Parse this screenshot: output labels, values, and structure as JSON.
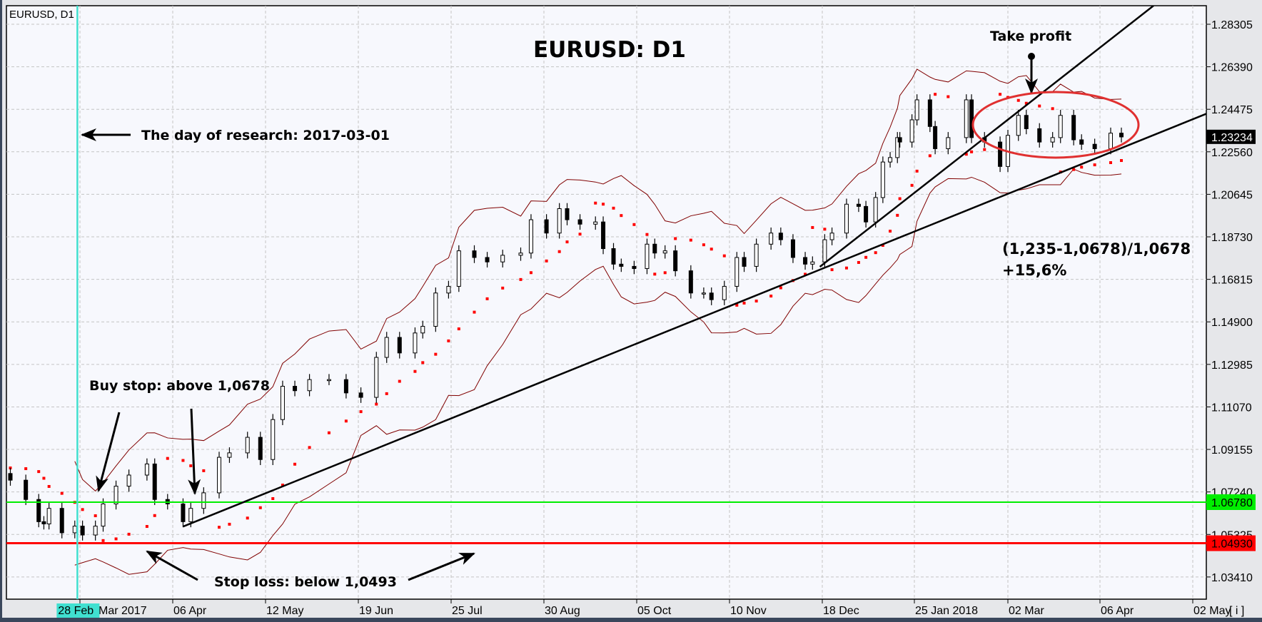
{
  "chart_data": {
    "type": "candlestick",
    "symbol_label": "EURUSD, D1",
    "title": "EURUSD: D1",
    "ylim": [
      1.0241,
      1.2914
    ],
    "grid": true,
    "yticks": [
      "1.28305",
      "1.26390",
      "1.24475",
      "1.22560",
      "1.20645",
      "1.18730",
      "1.16815",
      "1.14900",
      "1.12985",
      "1.11070",
      "1.09155",
      "1.07240",
      "1.05325",
      "1.03410"
    ],
    "xticks": [
      {
        "label": "Mar 2017",
        "date": "2017-03-01"
      },
      {
        "label": "06 Apr",
        "date": "2017-04-06"
      },
      {
        "label": "12 May",
        "date": "2017-05-12"
      },
      {
        "label": "19 Jun",
        "date": "2017-06-19"
      },
      {
        "label": "25 Jul",
        "date": "2017-07-25"
      },
      {
        "label": "30 Aug",
        "date": "2017-08-30"
      },
      {
        "label": "05 Oct",
        "date": "2017-10-05"
      },
      {
        "label": "10 Nov",
        "date": "2017-11-10"
      },
      {
        "label": "18 Dec",
        "date": "2017-12-18"
      },
      {
        "label": "25 Jan 2018",
        "date": "2018-01-25"
      },
      {
        "label": "02 Mar",
        "date": "2018-03-02"
      },
      {
        "label": "06 Apr",
        "date": "2018-04-06"
      },
      {
        "label": "02 May",
        "date": "2018-05-02"
      }
    ],
    "cursor": {
      "label": "28 Feb",
      "date": "2017-02-28",
      "color": "#40e0d0"
    },
    "info_button": "[ i ]",
    "current_price": {
      "label": "1.23234",
      "value": 1.23234
    },
    "levels": [
      {
        "label": "1.06780",
        "value": 1.0678,
        "color": "#00ee00"
      },
      {
        "label": "1.04930",
        "value": 1.0493,
        "color": "#ff0000"
      }
    ],
    "trendlines": [
      {
        "from": [
          "2017-04-10",
          1.0568
        ],
        "to": [
          "2018-05-07",
          1.2435
        ]
      },
      {
        "from": [
          "2017-12-17",
          1.1738
        ],
        "to": [
          "2018-04-21",
          1.2914
        ]
      }
    ],
    "closes": [
      [
        "2017-02-02",
        1.0777
      ],
      [
        "2017-02-08",
        1.069
      ],
      [
        "2017-02-13",
        1.059
      ],
      [
        "2017-02-15",
        1.058
      ],
      [
        "2017-02-17",
        1.065
      ],
      [
        "2017-02-22",
        1.054
      ],
      [
        "2017-02-27",
        1.057
      ],
      [
        "2017-03-02",
        1.053
      ],
      [
        "2017-03-07",
        1.057
      ],
      [
        "2017-03-10",
        1.067
      ],
      [
        "2017-03-15",
        1.075
      ],
      [
        "2017-03-20",
        1.08
      ],
      [
        "2017-03-27",
        1.085
      ],
      [
        "2017-03-30",
        1.069
      ],
      [
        "2017-04-04",
        1.067
      ],
      [
        "2017-04-10",
        1.059
      ],
      [
        "2017-04-13",
        1.065
      ],
      [
        "2017-04-18",
        1.072
      ],
      [
        "2017-04-24",
        1.088
      ],
      [
        "2017-04-28",
        1.09
      ],
      [
        "2017-05-05",
        1.097
      ],
      [
        "2017-05-10",
        1.087
      ],
      [
        "2017-05-15",
        1.105
      ],
      [
        "2017-05-19",
        1.12
      ],
      [
        "2017-05-24",
        1.118
      ],
      [
        "2017-05-30",
        1.123
      ],
      [
        "2017-06-07",
        1.123
      ],
      [
        "2017-06-14",
        1.117
      ],
      [
        "2017-06-20",
        1.115
      ],
      [
        "2017-06-26",
        1.133
      ],
      [
        "2017-06-30",
        1.142
      ],
      [
        "2017-07-05",
        1.135
      ],
      [
        "2017-07-11",
        1.144
      ],
      [
        "2017-07-14",
        1.147
      ],
      [
        "2017-07-19",
        1.162
      ],
      [
        "2017-07-24",
        1.165
      ],
      [
        "2017-07-28",
        1.181
      ],
      [
        "2017-08-03",
        1.178
      ],
      [
        "2017-08-08",
        1.176
      ],
      [
        "2017-08-14",
        1.179
      ],
      [
        "2017-08-21",
        1.18
      ],
      [
        "2017-08-25",
        1.195
      ],
      [
        "2017-08-31",
        1.189
      ],
      [
        "2017-09-05",
        1.2
      ],
      [
        "2017-09-08",
        1.195
      ],
      [
        "2017-09-13",
        1.193
      ],
      [
        "2017-09-19",
        1.194
      ],
      [
        "2017-09-22",
        1.182
      ],
      [
        "2017-09-26",
        1.175
      ],
      [
        "2017-09-29",
        1.174
      ],
      [
        "2017-10-04",
        1.173
      ],
      [
        "2017-10-09",
        1.184
      ],
      [
        "2017-10-12",
        1.18
      ],
      [
        "2017-10-16",
        1.181
      ],
      [
        "2017-10-20",
        1.172
      ],
      [
        "2017-10-26",
        1.162
      ],
      [
        "2017-10-31",
        1.162
      ],
      [
        "2017-11-03",
        1.159
      ],
      [
        "2017-11-08",
        1.165
      ],
      [
        "2017-11-13",
        1.178
      ],
      [
        "2017-11-16",
        1.174
      ],
      [
        "2017-11-21",
        1.184
      ],
      [
        "2017-11-27",
        1.189
      ],
      [
        "2017-12-01",
        1.186
      ],
      [
        "2017-12-06",
        1.178
      ],
      [
        "2017-12-11",
        1.175
      ],
      [
        "2017-12-14",
        1.176
      ],
      [
        "2017-12-19",
        1.186
      ],
      [
        "2017-12-22",
        1.189
      ],
      [
        "2017-12-28",
        1.202
      ],
      [
        "2018-01-02",
        1.201
      ],
      [
        "2018-01-05",
        1.194
      ],
      [
        "2018-01-09",
        1.205
      ],
      [
        "2018-01-12",
        1.221
      ],
      [
        "2018-01-15",
        1.223
      ],
      [
        "2018-01-18",
        1.232
      ],
      [
        "2018-01-19",
        1.23
      ],
      [
        "2018-01-24",
        1.24
      ],
      [
        "2018-01-26",
        1.249
      ],
      [
        "2018-01-31",
        1.237
      ],
      [
        "2018-02-02",
        1.227
      ],
      [
        "2018-02-07",
        1.232
      ],
      [
        "2018-02-14",
        1.249
      ],
      [
        "2018-02-16",
        1.232
      ],
      [
        "2018-02-21",
        1.23
      ],
      [
        "2018-02-27",
        1.219
      ],
      [
        "2018-03-02",
        1.233
      ],
      [
        "2018-03-06",
        1.242
      ],
      [
        "2018-03-09",
        1.236
      ],
      [
        "2018-03-14",
        1.23
      ],
      [
        "2018-03-19",
        1.232
      ],
      [
        "2018-03-22",
        1.242
      ],
      [
        "2018-03-27",
        1.231
      ],
      [
        "2018-03-30",
        1.229
      ],
      [
        "2018-04-04",
        1.227
      ],
      [
        "2018-04-09",
        1.234
      ],
      [
        "2018-04-12",
        1.2323
      ]
    ],
    "colors": {
      "bull": "#ffffff",
      "bear": "#000000",
      "bands": "#800000",
      "sar": "#ff0000",
      "fractal_up": "#00dd00",
      "fractal_down": "#ff0000",
      "ellipse": "#e03030"
    },
    "annotations": {
      "research_day": "The day of research: 2017-03-01",
      "buy_stop": "Buy stop: above 1,0678",
      "stop_loss": "Stop loss: below 1,0493",
      "take_profit": "Take profit",
      "calc_line1": "(1,235-1,0678)/1,0678",
      "calc_line2": "+15,6%"
    }
  }
}
